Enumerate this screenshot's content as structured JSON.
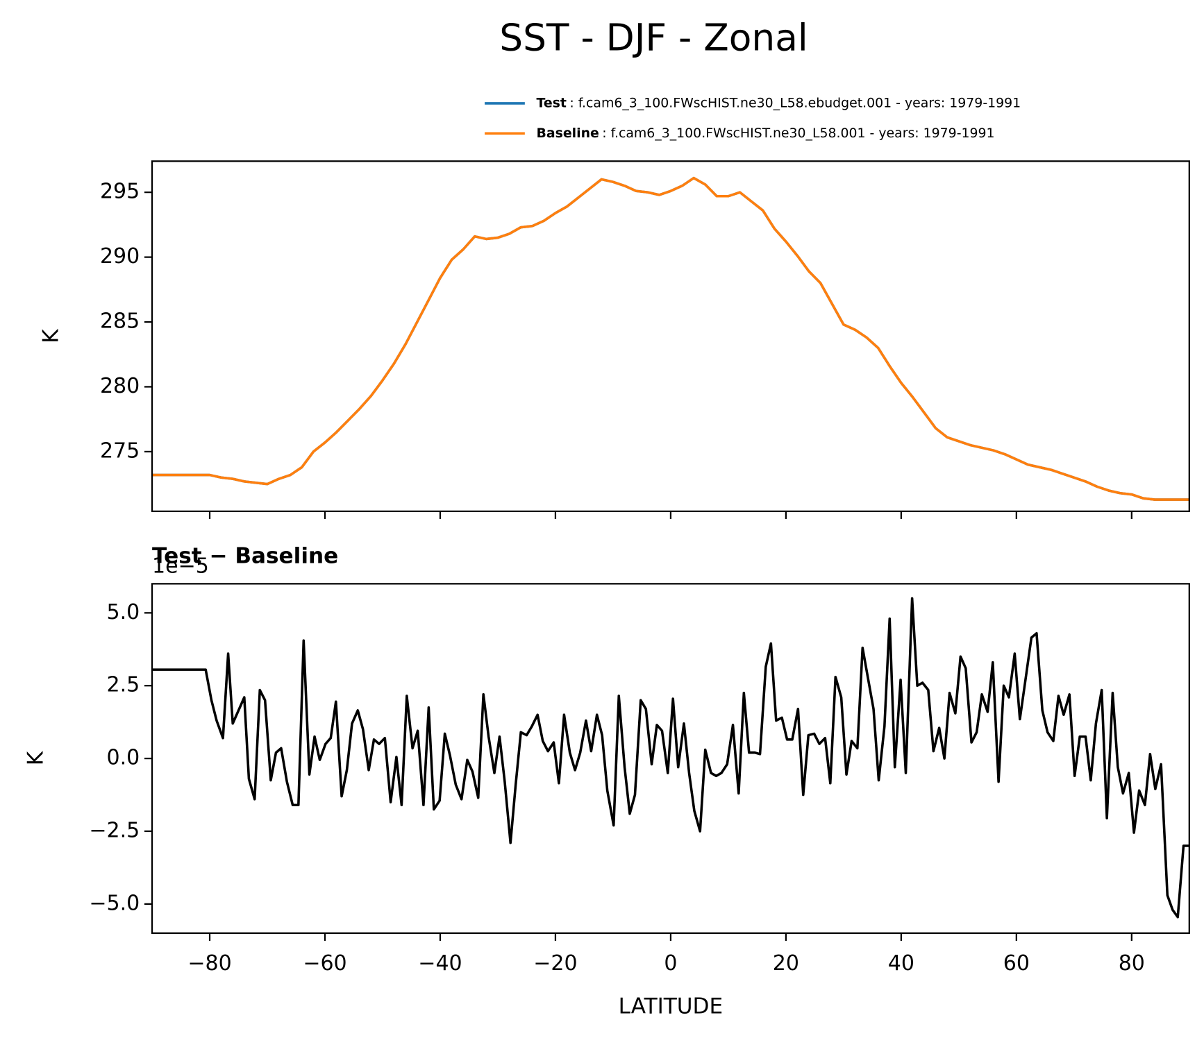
{
  "title": "SST - DJF - Zonal",
  "chart_data": [
    {
      "type": "line",
      "ylabel": "K",
      "x": [
        -90,
        -88,
        -86,
        -84,
        -82,
        -80,
        -78,
        -76,
        -74,
        -72,
        -70,
        -68,
        -66,
        -64,
        -62,
        -60,
        -58,
        -56,
        -54,
        -52,
        -50,
        -48,
        -46,
        -44,
        -42,
        -40,
        -38,
        -36,
        -34,
        -32,
        -30,
        -28,
        -26,
        -24,
        -22,
        -20,
        -18,
        -16,
        -14,
        -12,
        -10,
        -8,
        -6,
        -4,
        -2,
        0,
        2,
        4,
        6,
        8,
        10,
        12,
        14,
        16,
        18,
        20,
        22,
        24,
        26,
        28,
        30,
        32,
        34,
        36,
        38,
        40,
        42,
        44,
        46,
        48,
        50,
        52,
        54,
        56,
        58,
        60,
        62,
        64,
        66,
        68,
        70,
        72,
        74,
        76,
        78,
        80,
        82,
        84,
        86,
        88,
        90
      ],
      "xlim": [
        -90,
        90
      ],
      "xticks": [
        -80,
        -60,
        -40,
        -20,
        0,
        20,
        40,
        60,
        80
      ],
      "ylim": [
        270.4,
        297.4
      ],
      "yticks": [
        275,
        280,
        285,
        290,
        295
      ],
      "series": [
        {
          "name": "Test",
          "description": ": f.cam6_3_100.FWscHIST.ne30_L58.ebudget.001 - years: 1979-1991",
          "color": "#1f77b4",
          "values": [
            273.2,
            273.2,
            273.2,
            273.2,
            273.2,
            273.2,
            273.0,
            272.9,
            272.7,
            272.6,
            272.5,
            272.9,
            273.2,
            273.8,
            275.0,
            275.7,
            276.5,
            277.4,
            278.3,
            279.3,
            280.5,
            281.8,
            283.3,
            285.0,
            286.7,
            288.4,
            289.8,
            290.6,
            291.6,
            291.4,
            291.5,
            291.8,
            292.3,
            292.4,
            292.8,
            293.4,
            293.9,
            294.6,
            295.3,
            296.0,
            295.8,
            295.5,
            295.1,
            295.0,
            294.8,
            295.1,
            295.5,
            296.1,
            295.6,
            294.7,
            294.7,
            295.0,
            294.3,
            293.6,
            292.2,
            291.2,
            290.1,
            288.9,
            288.0,
            286.4,
            284.8,
            284.4,
            283.8,
            283.0,
            281.6,
            280.3,
            279.2,
            278.0,
            276.8,
            276.1,
            275.8,
            275.5,
            275.3,
            275.1,
            274.8,
            274.4,
            274.0,
            273.8,
            273.6,
            273.3,
            273.0,
            272.7,
            272.3,
            272.0,
            271.8,
            271.7,
            271.4,
            271.3,
            271.3,
            271.3,
            271.3
          ]
        },
        {
          "name": "Baseline",
          "description": ": f.cam6_3_100.FWscHIST.ne30_L58.001 - years: 1979-1991",
          "color": "#ff7f0e",
          "values": [
            273.2,
            273.2,
            273.2,
            273.2,
            273.2,
            273.2,
            273.0,
            272.9,
            272.7,
            272.6,
            272.5,
            272.9,
            273.2,
            273.8,
            275.0,
            275.7,
            276.5,
            277.4,
            278.3,
            279.3,
            280.5,
            281.8,
            283.3,
            285.0,
            286.7,
            288.4,
            289.8,
            290.6,
            291.6,
            291.4,
            291.5,
            291.8,
            292.3,
            292.4,
            292.8,
            293.4,
            293.9,
            294.6,
            295.3,
            296.0,
            295.8,
            295.5,
            295.1,
            295.0,
            294.8,
            295.1,
            295.5,
            296.1,
            295.6,
            294.7,
            294.7,
            295.0,
            294.3,
            293.6,
            292.2,
            291.2,
            290.1,
            288.9,
            288.0,
            286.4,
            284.8,
            284.4,
            283.8,
            283.0,
            281.6,
            280.3,
            279.2,
            278.0,
            276.8,
            276.1,
            275.8,
            275.5,
            275.3,
            275.1,
            274.8,
            274.4,
            274.0,
            273.8,
            273.6,
            273.3,
            273.0,
            272.7,
            272.3,
            272.0,
            271.8,
            271.7,
            271.4,
            271.3,
            271.3,
            271.3,
            271.3
          ]
        }
      ]
    },
    {
      "type": "line",
      "title": "Test − Baseline",
      "offset_label": "1e−5",
      "ylabel": "K",
      "xlabel": "LATITUDE",
      "x": [
        -89.9,
        -80.7,
        -79.7,
        -78.8,
        -77.7,
        -76.8,
        -76.0,
        -74.0,
        -73.2,
        -72.2,
        -71.3,
        -70.4,
        -69.4,
        -68.5,
        -67.6,
        -66.6,
        -65.6,
        -64.6,
        -63.7,
        -62.7,
        -61.8,
        -60.9,
        -59.9,
        -59.0,
        -58.1,
        -57.1,
        -56.2,
        -55.3,
        -54.3,
        -53.4,
        -52.4,
        -51.5,
        -50.6,
        -49.6,
        -48.6,
        -47.6,
        -46.7,
        -45.8,
        -44.8,
        -43.9,
        -42.9,
        -42.0,
        -41.1,
        -40.1,
        -39.2,
        -38.3,
        -37.3,
        -36.3,
        -35.3,
        -34.4,
        -33.4,
        -32.5,
        -31.6,
        -30.6,
        -29.7,
        -28.8,
        -27.8,
        -26.9,
        -26.0,
        -25.0,
        -24.1,
        -23.1,
        -22.2,
        -21.3,
        -20.3,
        -19.4,
        -18.5,
        -17.5,
        -16.6,
        -15.7,
        -14.7,
        -13.8,
        -12.8,
        -11.9,
        -11.0,
        -9.9,
        -9.0,
        -8.0,
        -7.1,
        -6.2,
        -5.2,
        -4.3,
        -3.3,
        -2.4,
        -1.5,
        -0.5,
        0.4,
        1.3,
        2.3,
        3.2,
        4.1,
        5.1,
        6.0,
        7.0,
        7.9,
        8.8,
        9.8,
        10.8,
        11.8,
        12.7,
        13.6,
        14.6,
        15.5,
        16.5,
        17.4,
        18.3,
        19.3,
        20.2,
        21.1,
        22.1,
        23.0,
        23.9,
        24.9,
        25.8,
        26.8,
        27.7,
        28.6,
        29.6,
        30.5,
        31.4,
        32.4,
        33.3,
        34.2,
        35.2,
        36.1,
        37.1,
        38.0,
        38.9,
        39.9,
        40.8,
        41.9,
        42.8,
        43.7,
        44.7,
        45.6,
        46.6,
        47.5,
        48.4,
        49.4,
        50.3,
        51.2,
        52.2,
        53.1,
        54.0,
        55.0,
        55.9,
        56.9,
        57.8,
        58.7,
        59.7,
        60.6,
        61.5,
        62.6,
        63.5,
        64.5,
        65.4,
        66.4,
        67.3,
        68.2,
        69.2,
        70.1,
        71.0,
        72.0,
        72.9,
        73.8,
        74.8,
        75.7,
        76.7,
        77.6,
        78.5,
        79.5,
        80.4,
        81.3,
        82.3,
        83.2,
        84.1,
        85.1,
        86.2,
        87.1,
        88.0,
        89.0,
        89.9
      ],
      "xlim": [
        -90,
        90
      ],
      "xticks": [
        {
          "value": -80,
          "label": "−80"
        },
        {
          "value": -60,
          "label": "−60"
        },
        {
          "value": -40,
          "label": "−40"
        },
        {
          "value": -20,
          "label": "−20"
        },
        0,
        20,
        40,
        60,
        80
      ],
      "ylim": [
        -6,
        6
      ],
      "yticks": [
        {
          "value": -5,
          "label": "−5.0"
        },
        {
          "value": -2.5,
          "label": "−2.5"
        },
        {
          "value": 0,
          "label": "0.0"
        },
        {
          "value": 2.5,
          "label": "2.5"
        },
        {
          "value": 5,
          "label": "5.0"
        }
      ],
      "color": "#000000",
      "values": [
        3.05,
        3.05,
        2.0,
        1.3,
        0.7,
        3.6,
        1.2,
        2.1,
        -0.7,
        -1.4,
        2.35,
        2.0,
        -0.75,
        0.2,
        0.35,
        -0.8,
        -1.6,
        -1.6,
        4.05,
        -0.55,
        0.75,
        -0.05,
        0.5,
        0.7,
        1.95,
        -1.3,
        -0.4,
        1.2,
        1.65,
        1.0,
        -0.4,
        0.65,
        0.5,
        0.7,
        -1.5,
        0.05,
        -1.6,
        2.15,
        0.35,
        0.95,
        -1.6,
        1.75,
        -1.75,
        -1.45,
        0.85,
        0.1,
        -0.9,
        -1.4,
        -0.05,
        -0.45,
        -1.35,
        2.2,
        0.75,
        -0.5,
        0.75,
        -0.8,
        -2.9,
        -0.9,
        0.9,
        0.8,
        1.1,
        1.5,
        0.6,
        0.25,
        0.55,
        -0.85,
        1.5,
        0.2,
        -0.4,
        0.2,
        1.3,
        0.25,
        1.5,
        0.8,
        -1.1,
        -2.3,
        2.15,
        -0.3,
        -1.9,
        -1.25,
        2.0,
        1.7,
        -0.2,
        1.15,
        0.95,
        -0.5,
        2.05,
        -0.3,
        1.2,
        -0.5,
        -1.8,
        -2.5,
        0.3,
        -0.5,
        -0.6,
        -0.5,
        -0.2,
        1.15,
        -1.2,
        2.25,
        0.2,
        0.2,
        0.15,
        3.15,
        3.95,
        1.3,
        1.4,
        0.65,
        0.65,
        1.7,
        -1.25,
        0.8,
        0.85,
        0.5,
        0.7,
        -0.85,
        2.8,
        2.1,
        -0.55,
        0.6,
        0.35,
        3.8,
        2.8,
        1.7,
        -0.75,
        1.1,
        4.8,
        -0.3,
        2.7,
        -0.5,
        5.5,
        2.5,
        2.6,
        2.35,
        0.25,
        1.05,
        0.0,
        2.25,
        1.55,
        3.5,
        3.1,
        0.55,
        0.9,
        2.2,
        1.6,
        3.3,
        -0.8,
        2.5,
        2.1,
        3.6,
        1.35,
        2.6,
        4.15,
        4.3,
        1.65,
        0.9,
        0.6,
        2.15,
        1.5,
        2.2,
        -0.6,
        0.75,
        0.75,
        -0.75,
        1.2,
        2.35,
        -2.05,
        2.25,
        -0.3,
        -1.2,
        -0.5,
        -2.55,
        -1.1,
        -1.6,
        0.15,
        -1.05,
        -0.2,
        -4.7,
        -5.2,
        -5.45,
        -3.0,
        -3.0
      ]
    }
  ]
}
